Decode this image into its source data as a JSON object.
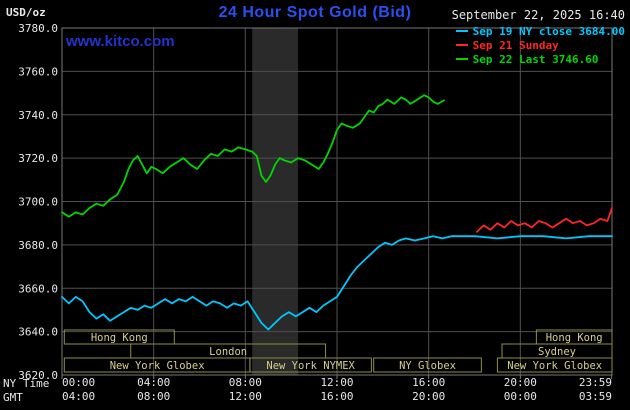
{
  "header": {
    "units_label": "USD/oz",
    "title": "24 Hour Spot Gold (Bid)",
    "datetime": "September 22, 2025 16:40",
    "watermark": "www.kitco.com"
  },
  "axes": {
    "ny_label": "NY Time",
    "gmt_label": "GMT"
  },
  "legend": {
    "items": [
      {
        "label": "Sep 19 NY close 3684.00",
        "color": "#00c8ff"
      },
      {
        "label": "Sep 21 Sunday",
        "color": "#ff2626"
      },
      {
        "label": "Sep 22 Last 3746.60",
        "color": "#00d600"
      }
    ]
  },
  "chart_data": {
    "type": "line",
    "title": "24 Hour Spot Gold (Bid)",
    "ylabel": "USD/oz",
    "ylim": [
      3620,
      3780
    ],
    "ytick_interval": 20,
    "x_hours_range": [
      0,
      24
    ],
    "grid": true,
    "legend_position": "top-right",
    "shaded_band_hours": [
      8.3,
      10.3
    ],
    "xticks": [
      {
        "h": 0,
        "ny": "00:00",
        "gmt": "04:00"
      },
      {
        "h": 4,
        "ny": "04:00",
        "gmt": "08:00"
      },
      {
        "h": 8,
        "ny": "08:00",
        "gmt": "12:00"
      },
      {
        "h": 12,
        "ny": "12:00",
        "gmt": "16:00"
      },
      {
        "h": 16,
        "ny": "16:00",
        "gmt": "20:00"
      },
      {
        "h": 20,
        "ny": "20:00",
        "gmt": "00:00"
      },
      {
        "h": 23.983,
        "ny": "23:59",
        "gmt": "03:59"
      }
    ],
    "series": [
      {
        "name": "Sep 19 NY close",
        "color": "#00c8ff",
        "close_value": 3684.0,
        "x": [
          0,
          0.3,
          0.6,
          0.9,
          1.2,
          1.5,
          1.8,
          2.1,
          2.4,
          2.7,
          3.0,
          3.3,
          3.6,
          3.9,
          4.2,
          4.5,
          4.8,
          5.1,
          5.4,
          5.7,
          6.0,
          6.3,
          6.6,
          6.9,
          7.2,
          7.5,
          7.8,
          8.1,
          8.4,
          8.7,
          9.0,
          9.3,
          9.6,
          9.9,
          10.2,
          10.5,
          10.8,
          11.1,
          11.4,
          11.7,
          12.0,
          12.3,
          12.6,
          12.9,
          13.2,
          13.5,
          13.8,
          14.1,
          14.4,
          14.7,
          15.0,
          15.4,
          15.8,
          16.2,
          16.6,
          17.0,
          18.0,
          19.0,
          20.0,
          21.0,
          22.0,
          23.0,
          24.0
        ],
        "y": [
          3656,
          3653,
          3656,
          3654,
          3649,
          3646,
          3648,
          3645,
          3647,
          3649,
          3651,
          3650,
          3652,
          3651,
          3653,
          3655,
          3653,
          3655,
          3654,
          3656,
          3654,
          3652,
          3654,
          3653,
          3651,
          3653,
          3652,
          3654,
          3649,
          3644,
          3641,
          3644,
          3647,
          3649,
          3647,
          3649,
          3651,
          3649,
          3652,
          3654,
          3656,
          3661,
          3666,
          3670,
          3673,
          3676,
          3679,
          3681,
          3680,
          3682,
          3683,
          3682,
          3683,
          3684,
          3683,
          3684,
          3684,
          3683,
          3684,
          3684,
          3683,
          3684,
          3684
        ]
      },
      {
        "name": "Sep 21 Sunday",
        "color": "#ff2626",
        "x": [
          18.1,
          18.4,
          18.7,
          19.0,
          19.3,
          19.6,
          19.9,
          20.2,
          20.5,
          20.8,
          21.1,
          21.4,
          21.7,
          22.0,
          22.3,
          22.6,
          22.9,
          23.2,
          23.5,
          23.8,
          24.0
        ],
        "y": [
          3686,
          3689,
          3687,
          3690,
          3688,
          3691,
          3689,
          3690,
          3688,
          3691,
          3690,
          3688,
          3690,
          3692,
          3690,
          3691,
          3689,
          3690,
          3692,
          3691,
          3697
        ]
      },
      {
        "name": "Sep 22 Last",
        "color": "#00d600",
        "last_value": 3746.6,
        "x": [
          0,
          0.3,
          0.6,
          0.9,
          1.2,
          1.5,
          1.8,
          2.1,
          2.4,
          2.7,
          2.9,
          3.1,
          3.3,
          3.5,
          3.7,
          3.9,
          4.1,
          4.4,
          4.7,
          5.0,
          5.3,
          5.6,
          5.9,
          6.2,
          6.5,
          6.8,
          7.1,
          7.4,
          7.7,
          8.0,
          8.3,
          8.5,
          8.7,
          8.9,
          9.1,
          9.3,
          9.5,
          9.7,
          10.0,
          10.3,
          10.6,
          10.9,
          11.2,
          11.4,
          11.6,
          11.8,
          12.0,
          12.2,
          12.4,
          12.7,
          13.0,
          13.2,
          13.4,
          13.6,
          13.8,
          14.0,
          14.2,
          14.5,
          14.8,
          15.0,
          15.2,
          15.5,
          15.8,
          16.0,
          16.2,
          16.4,
          16.67
        ],
        "y": [
          3695,
          3693,
          3695,
          3694,
          3697,
          3699,
          3698,
          3701,
          3703,
          3709,
          3715,
          3719,
          3721,
          3717,
          3713,
          3716,
          3715,
          3713,
          3716,
          3718,
          3720,
          3717,
          3715,
          3719,
          3722,
          3721,
          3724,
          3723,
          3725,
          3724,
          3723,
          3721,
          3712,
          3709,
          3712,
          3717,
          3720,
          3719,
          3718,
          3720,
          3719,
          3717,
          3715,
          3718,
          3722,
          3727,
          3733,
          3736,
          3735,
          3734,
          3736,
          3739,
          3742,
          3741,
          3744,
          3745,
          3747,
          3745,
          3748,
          3747,
          3745,
          3747,
          3749,
          3748,
          3746,
          3745,
          3746.6
        ]
      }
    ],
    "sessions": [
      {
        "label": "Hong Kong",
        "row": 0,
        "start_h": 0.1,
        "end_h": 4.9
      },
      {
        "label": "Hong Kong",
        "row": 0,
        "start_h": 20.7,
        "end_h": 24
      },
      {
        "label": "London",
        "row": 1,
        "start_h": 3.0,
        "end_h": 11.5
      },
      {
        "label": "Sydney",
        "row": 1,
        "start_h": 19.2,
        "end_h": 24
      },
      {
        "label": "New York Globex",
        "row": 2,
        "start_h": 0.1,
        "end_h": 8.2
      },
      {
        "label": "New York NYMEX",
        "row": 2,
        "start_h": 8.2,
        "end_h": 13.5
      },
      {
        "label": "NY Globex",
        "row": 2,
        "start_h": 13.6,
        "end_h": 18.3
      },
      {
        "label": "New York Globex",
        "row": 2,
        "start_h": 19.0,
        "end_h": 24
      }
    ],
    "colors": {
      "background": "#000000",
      "band": "#2a2a2a",
      "grid": "#4f4f4f",
      "frame": "#787878",
      "tick_text": "#e8e8e8",
      "session_border": "#8f8f3f",
      "session_text": "#d8cf8e"
    }
  }
}
